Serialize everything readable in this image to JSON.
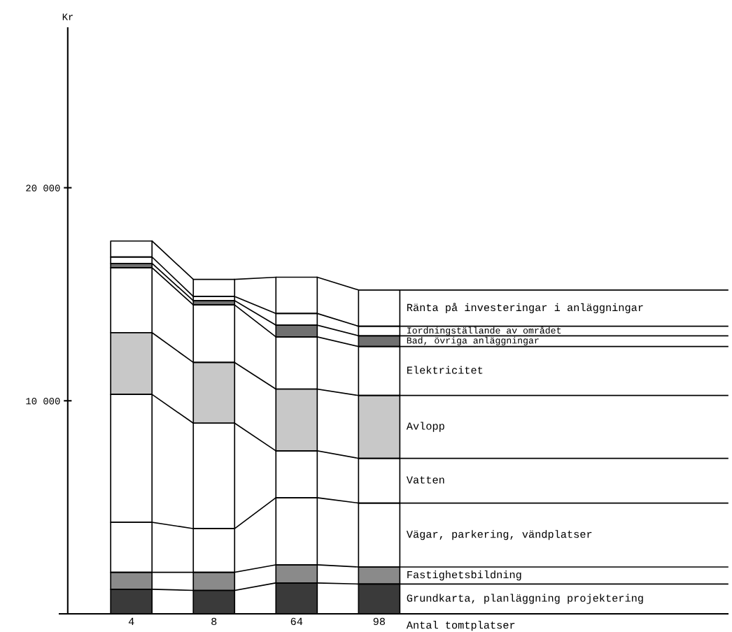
{
  "chart_data": {
    "type": "bar",
    "stacked": true,
    "xlabel": "Antal tomtplatser",
    "ylabel": "Kr",
    "categories": [
      "4",
      "8",
      "64",
      "98"
    ],
    "series": [
      {
        "name": "Grundkarta, planläggning projektering",
        "color": "#3a3a3a",
        "values": [
          1150,
          1100,
          1450,
          1400
        ]
      },
      {
        "name": "Fastighetsbildning",
        "color": "#8a8a8a",
        "values": [
          800,
          850,
          850,
          800
        ]
      },
      {
        "name": "Vägar, parkering, vändplatser",
        "color": "#ffffff",
        "values": [
          2350,
          2050,
          3150,
          3000
        ]
      },
      {
        "name": "Vatten",
        "color": "#ffffff",
        "values": [
          6000,
          4950,
          2200,
          2100
        ]
      },
      {
        "name": "Avlopp",
        "color": "#c8c8c8",
        "values": [
          2900,
          2850,
          2900,
          2950
        ]
      },
      {
        "name": "Elektricitet",
        "color": "#ffffff",
        "values": [
          3050,
          2700,
          2450,
          2300
        ]
      },
      {
        "name": "Bad, övriga anläggningar",
        "color": "#707070",
        "values": [
          200,
          200,
          550,
          500
        ]
      },
      {
        "name": "Iordningställande av området",
        "color": "#ffffff",
        "values": [
          300,
          200,
          550,
          450
        ]
      },
      {
        "name": "Ränta på investeringar i anläggningar",
        "color": "#ffffff",
        "values": [
          750,
          800,
          1700,
          1700
        ]
      }
    ],
    "ylim": [
      0,
      27500
    ],
    "yticks": [
      {
        "value": 10000,
        "label": "10 000"
      },
      {
        "value": 20000,
        "label": "20 000"
      }
    ],
    "grid": false,
    "legend": false
  }
}
